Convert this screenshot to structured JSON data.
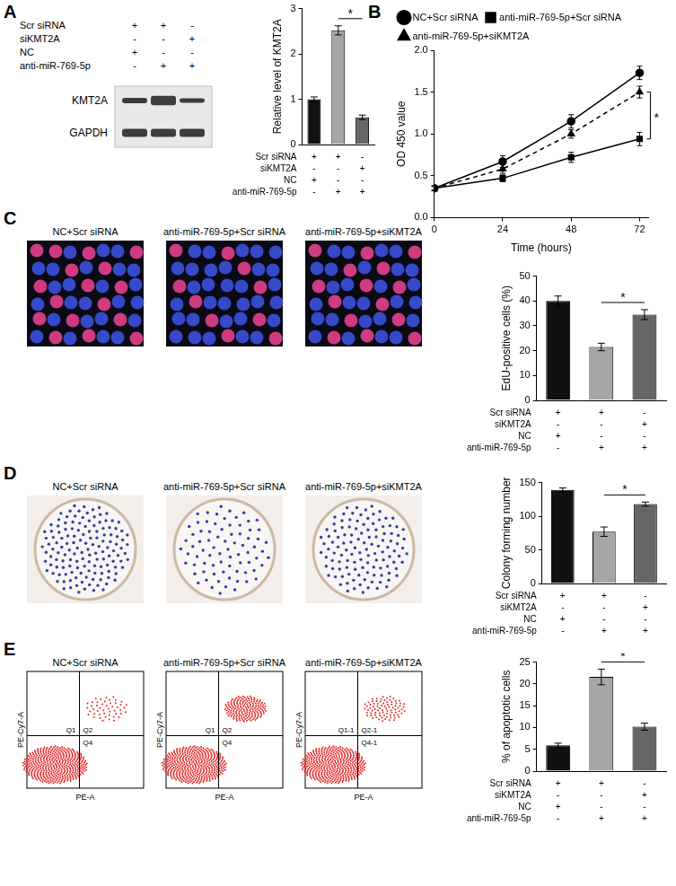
{
  "conditions": [
    {
      "label": "Scr siRNA",
      "marks": [
        "+",
        "+",
        "-"
      ]
    },
    {
      "label": "siKMT2A",
      "marks": [
        "-",
        "-",
        "+"
      ]
    },
    {
      "label": "NC",
      "marks": [
        "+",
        "-",
        "-"
      ]
    },
    {
      "label": "anti-miR-769-5p",
      "marks": [
        "-",
        "+",
        "+"
      ]
    }
  ],
  "blot": {
    "panel": "A",
    "bands": [
      "KMT2A",
      "GAPDH"
    ]
  },
  "image_titles": [
    "NC+Scr siRNA",
    "anti-miR-769-5p+Scr siRNA",
    "anti-miR-769-5p+siKMT2A"
  ],
  "image_panels": [
    "C",
    "D",
    "E"
  ],
  "flow": {
    "x_label": "PE-A",
    "y_label": "PE-Cy7-A",
    "quadrants": [
      [
        "Q1",
        "Q2",
        "Q4"
      ],
      [
        "Q1",
        "Q2",
        "Q4"
      ],
      [
        "Q1-1",
        "Q2-1",
        "Q4-1"
      ]
    ]
  },
  "chart_data": [
    {
      "panel": "A",
      "type": "bar",
      "categories": [
        null,
        null,
        null
      ],
      "values": [
        1.0,
        2.52,
        0.6
      ],
      "errors": [
        0.05,
        0.1,
        0.05
      ],
      "colors": [
        "#111111",
        "#a6a6a6",
        "#666666"
      ],
      "y_label": "Relative level of KMT2A",
      "ylim": [
        0,
        3
      ],
      "yticks": [
        0,
        1,
        2,
        3
      ],
      "grid": false,
      "tick_labels": "y",
      "annotations": [
        {
          "text": "*",
          "between": [
            1,
            2
          ]
        }
      ]
    },
    {
      "panel": "B",
      "type": "line",
      "x": [
        0,
        24,
        48,
        72
      ],
      "xlim": [
        0,
        75
      ],
      "xticks": [
        0,
        24,
        48,
        72
      ],
      "ylim": [
        0,
        2
      ],
      "yticks": [
        {
          "value": 0,
          "label": "0.0"
        },
        {
          "value": 0.5,
          "label": "0.5"
        },
        {
          "value": 1,
          "label": "1.0"
        },
        {
          "value": 1.5,
          "label": "1.5"
        },
        {
          "value": 2,
          "label": "2.0"
        }
      ],
      "x_label": "Time (hours)",
      "y_label": "OD 450 value",
      "grid": false,
      "legend": "top-left",
      "series": [
        {
          "name": "NC+Scr siRNA",
          "color": "#000000",
          "marker": "circle",
          "line_style": "solid",
          "values": [
            0.35,
            0.67,
            1.15,
            1.73
          ],
          "errors": [
            0.03,
            0.07,
            0.08,
            0.08
          ]
        },
        {
          "name": "anti-miR-769-5p+Scr siRNA",
          "color": "#000000",
          "marker": "square",
          "line_style": "solid",
          "values": [
            0.35,
            0.47,
            0.72,
            0.94
          ],
          "errors": [
            0.02,
            0.04,
            0.06,
            0.08
          ]
        },
        {
          "name": "anti-miR-769-5p+siKMT2A",
          "color": "#000000",
          "marker": "triangle",
          "line_style": "dashed",
          "values": [
            0.35,
            0.58,
            1.0,
            1.5
          ],
          "errors": [
            0.03,
            0.05,
            0.05,
            0.07
          ]
        }
      ],
      "annotations": [
        {
          "text": "*",
          "between_series": [
            1,
            2
          ],
          "at": 72
        }
      ]
    },
    {
      "panel": "C",
      "type": "bar",
      "categories": [
        null,
        null,
        null
      ],
      "values": [
        40,
        21.5,
        34.5
      ],
      "errors": [
        2,
        1.5,
        2
      ],
      "colors": [
        "#111111",
        "#a6a6a6",
        "#666666"
      ],
      "y_label": "EdU-positive cells (%)",
      "ylim": [
        0,
        50
      ],
      "yticks": [
        0,
        10,
        20,
        30,
        40,
        50
      ],
      "grid": false,
      "tick_labels": "y",
      "annotations": [
        {
          "text": "*",
          "between": [
            1,
            2
          ]
        }
      ]
    },
    {
      "panel": "D",
      "type": "bar",
      "categories": [
        null,
        null,
        null
      ],
      "values": [
        139,
        77,
        118
      ],
      "errors": [
        3,
        7,
        3
      ],
      "colors": [
        "#111111",
        "#a6a6a6",
        "#666666"
      ],
      "y_label": "Colony forming number",
      "ylim": [
        0,
        150
      ],
      "yticks": [
        0,
        50,
        100,
        150
      ],
      "grid": false,
      "tick_labels": "y",
      "annotations": [
        {
          "text": "*",
          "between": [
            1,
            2
          ]
        }
      ]
    },
    {
      "panel": "E",
      "type": "bar",
      "categories": [
        null,
        null,
        null
      ],
      "values": [
        5.9,
        21.6,
        10.2
      ],
      "errors": [
        0.5,
        1.8,
        0.8
      ],
      "colors": [
        "#111111",
        "#a6a6a6",
        "#666666"
      ],
      "y_label": "% of apoptotic cells",
      "ylim": [
        0,
        25
      ],
      "yticks": [
        0,
        5,
        10,
        15,
        20,
        25
      ],
      "grid": false,
      "tick_labels": "y",
      "annotations": [
        {
          "text": "*",
          "between": [
            1,
            2
          ]
        }
      ]
    }
  ]
}
